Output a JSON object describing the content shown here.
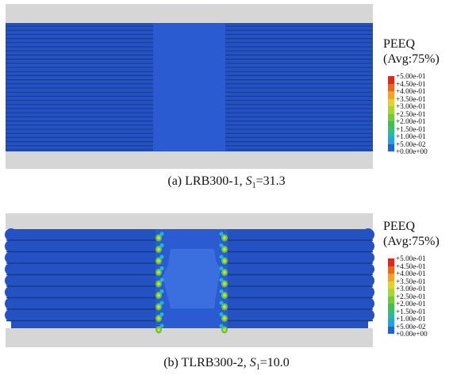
{
  "panels": [
    {
      "id": "a",
      "legend_title_line1": "PEEQ",
      "legend_title_line2": "(Avg:75%)",
      "caption_text": "(a) LRB300-1, ",
      "caption_var": "S",
      "caption_sub": "1",
      "caption_value": "=31.3"
    },
    {
      "id": "b",
      "legend_title_line1": "PEEQ",
      "legend_title_line2": "(Avg:75%)",
      "caption_text": "(b) TLRB300-2, ",
      "caption_var": "S",
      "caption_sub": "1",
      "caption_value": "=10.0"
    }
  ],
  "legend_values": [
    "+5.00e-01",
    "+4.50e-01",
    "+4.00e-01",
    "+3.50e-01",
    "+3.00e-01",
    "+2.50e-01",
    "+2.00e-01",
    "+1.50e-01",
    "+1.00e-01",
    "+5.00e-02",
    "+0.00e+00"
  ],
  "legend_colors": [
    "#e8231c",
    "#f5631b",
    "#f7a51d",
    "#e3d322",
    "#a9d62c",
    "#6fcc37",
    "#3ac15a",
    "#27bd9c",
    "#1ea7d8",
    "#1b66d4"
  ],
  "colors": {
    "plate": "#d8d8d8",
    "rubber_dark": "#1a3f9a",
    "rubber_mid": "#2552c2",
    "core": "#2a5bd0",
    "hot_green": "#58c84a",
    "hot_cyan": "#22b5d9"
  }
}
